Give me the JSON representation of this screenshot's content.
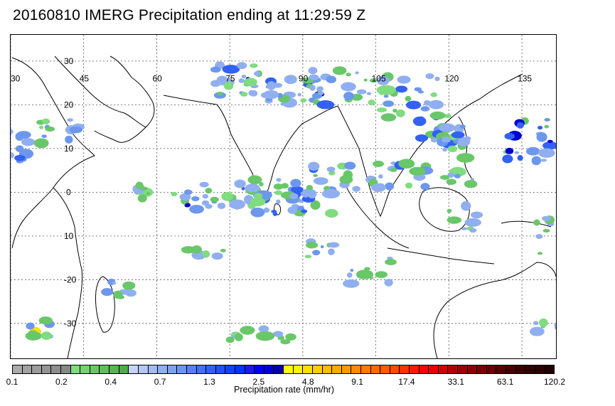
{
  "title": "20160810 IMERG Precipitation ending at 11:29:59 Z",
  "map": {
    "lon_labels": [
      "30",
      "45",
      "60",
      "75",
      "90",
      "105",
      "120",
      "135"
    ],
    "lat_labels": [
      "30",
      "20",
      "10",
      "0",
      "10",
      "-20",
      "-30"
    ],
    "lon_range": [
      30,
      142
    ],
    "lat_range": [
      -38,
      36
    ]
  },
  "colorbar": {
    "colors": [
      "#aaaaaa",
      "#a3a3a3",
      "#9c9c9c",
      "#959595",
      "#8e8e8e",
      "#878787",
      "#7fdc7f",
      "#74d174",
      "#69c769",
      "#60bd60",
      "#56b356",
      "#4dab4d",
      "#c6d3f6",
      "#b4c7f4",
      "#a2bbf2",
      "#90aff0",
      "#7ea3ee",
      "#6c97ec",
      "#5a7ff0",
      "#4670f2",
      "#3261f4",
      "#2052f5",
      "#0f43f6",
      "#0034f8",
      "#1a1ae6",
      "#0000f0",
      "#0000d0",
      "#0000b0",
      "#ffff00",
      "#fff200",
      "#ffe000",
      "#ffce00",
      "#ffbc00",
      "#ffaa00",
      "#ff9a00",
      "#ff8a00",
      "#ff7a00",
      "#ff6a00",
      "#ff5a00",
      "#ff4a00",
      "#ff3300",
      "#ff1a00",
      "#ff0000",
      "#e60000",
      "#cc0000",
      "#b30000",
      "#990000",
      "#880000",
      "#770000",
      "#660000",
      "#550000",
      "#440000",
      "#3a0000",
      "#300000",
      "#2a0000",
      "#220000"
    ],
    "labels": [
      "0.1",
      "0.2",
      "0.4",
      "0.7",
      "1.3",
      "2.5",
      "4.8",
      "9.1",
      "17.4",
      "33.1",
      "63.1",
      "120.2"
    ],
    "units": "Precipitation rate (mm/hr)"
  }
}
